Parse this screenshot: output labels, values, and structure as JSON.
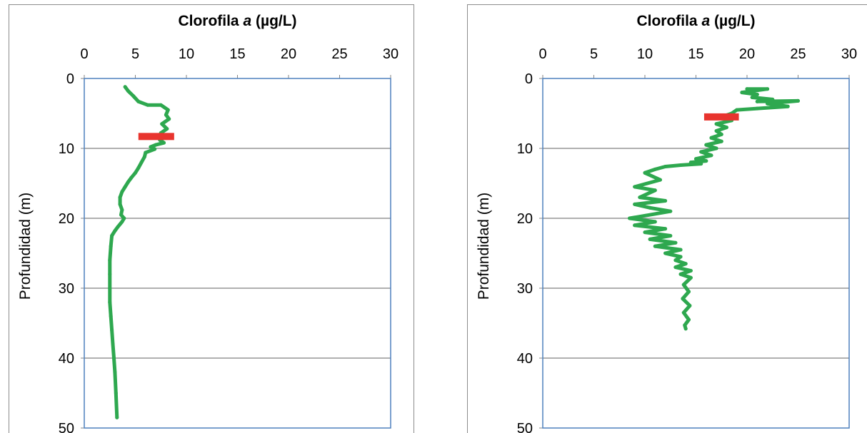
{
  "chart_data": [
    {
      "type": "line",
      "title": "Clorofila ",
      "title_italic": "a",
      "title_unit": " (µg/L)",
      "ylabel": "Profundidad (m)",
      "xlim": [
        0,
        30
      ],
      "ylim": [
        0,
        50
      ],
      "y_inverted": true,
      "x_axis_position": "top",
      "x_ticks": [
        "0",
        "5",
        "10",
        "15",
        "20",
        "25",
        "30"
      ],
      "y_ticks": [
        "0",
        "10",
        "20",
        "30",
        "40",
        "50"
      ],
      "grid": "horizontal",
      "colors": {
        "series": "#2ea84f",
        "marker": "#e8342e",
        "border": "#4f81bd"
      },
      "series": [
        {
          "x": [
            4,
            4.3,
            4.8,
            5.3,
            6.2,
            7.5,
            8.2,
            8.0,
            8.3,
            7.6,
            8.1,
            7.5,
            8.0,
            7.4,
            7.8,
            7.0,
            6.5,
            6.9,
            6.0,
            5.9,
            5.6,
            5.3,
            5.0,
            4.6,
            4.3,
            4.0,
            3.7,
            3.5,
            3.5,
            3.7,
            3.6,
            3.9,
            3.7,
            3.3,
            3.0,
            2.7,
            2.6,
            2.5,
            2.5,
            2.5,
            2.5,
            2.6,
            2.7,
            2.8,
            2.9,
            3.0,
            3.1,
            3.2
          ],
          "y": [
            1.2,
            1.8,
            2.5,
            3.3,
            3.8,
            3.8,
            4.5,
            5.2,
            5.8,
            6.5,
            7.2,
            7.8,
            8.3,
            8.8,
            9.2,
            9.5,
            9.8,
            10.1,
            10.6,
            11.2,
            12.0,
            12.8,
            13.5,
            14.2,
            14.8,
            15.5,
            16.2,
            17.0,
            18.0,
            18.8,
            19.5,
            20.0,
            20.5,
            21.2,
            21.8,
            22.5,
            24.0,
            26.0,
            28.0,
            30.0,
            32.0,
            34.0,
            36.0,
            38.0,
            40.0,
            42.0,
            45.0,
            48.5
          ]
        }
      ],
      "marker": {
        "x_start": 5.3,
        "x_end": 8.8,
        "y": 8.3
      }
    },
    {
      "type": "line",
      "title": "Clorofila ",
      "title_italic": "a",
      "title_unit": " (µg/L)",
      "ylabel": "Profundidad (m)",
      "xlim": [
        0,
        30
      ],
      "ylim": [
        0,
        50
      ],
      "y_inverted": true,
      "x_axis_position": "top",
      "x_ticks": [
        "0",
        "5",
        "10",
        "15",
        "20",
        "25",
        "30"
      ],
      "y_ticks": [
        "0",
        "10",
        "20",
        "30",
        "40",
        "50"
      ],
      "grid": "horizontal",
      "colors": {
        "series": "#2ea84f",
        "marker": "#e8342e",
        "border": "#4f81bd"
      },
      "series": [
        {
          "x": [
            20,
            22,
            19.5,
            21,
            20.5,
            22.5,
            21,
            25,
            22,
            24,
            21,
            19,
            18.5,
            17.5,
            18.5,
            17,
            18,
            17,
            17.5,
            16.5,
            17.5,
            16,
            17,
            15.5,
            16.5,
            15,
            16,
            14.5,
            15.5,
            13.5,
            12,
            11,
            10,
            11.5,
            9,
            11,
            9.5,
            12,
            9,
            10.5,
            12.5,
            8.5,
            11,
            9,
            12,
            10,
            12.5,
            10.5,
            13,
            11,
            13.5,
            12,
            13.5,
            13,
            14,
            13,
            14.5,
            13.5,
            14.5,
            13.8,
            14.3,
            13.7,
            14.4,
            13.8,
            14.3,
            13.9,
            14
          ],
          "y": [
            1.5,
            1.5,
            2.0,
            2.3,
            2.7,
            3.0,
            3.3,
            3.2,
            3.6,
            4.0,
            4.3,
            4.5,
            5.0,
            5.5,
            6.0,
            6.5,
            7.0,
            7.5,
            8.0,
            8.5,
            9.0,
            9.5,
            10.0,
            10.5,
            11.0,
            11.5,
            11.8,
            12.0,
            12.2,
            12.4,
            12.6,
            13.0,
            13.5,
            14.5,
            15.5,
            16.0,
            17.0,
            17.5,
            18.0,
            18.5,
            19.0,
            20.0,
            20.5,
            21.0,
            21.5,
            22.0,
            22.5,
            23.0,
            23.5,
            24.0,
            24.5,
            25.0,
            25.5,
            26.0,
            26.5,
            27.0,
            27.5,
            28.0,
            28.5,
            29.5,
            30.5,
            31.5,
            32.5,
            33.5,
            34.5,
            35.3,
            35.8
          ]
        }
      ],
      "marker": {
        "x_start": 15.8,
        "x_end": 19.2,
        "y": 5.5
      }
    }
  ]
}
